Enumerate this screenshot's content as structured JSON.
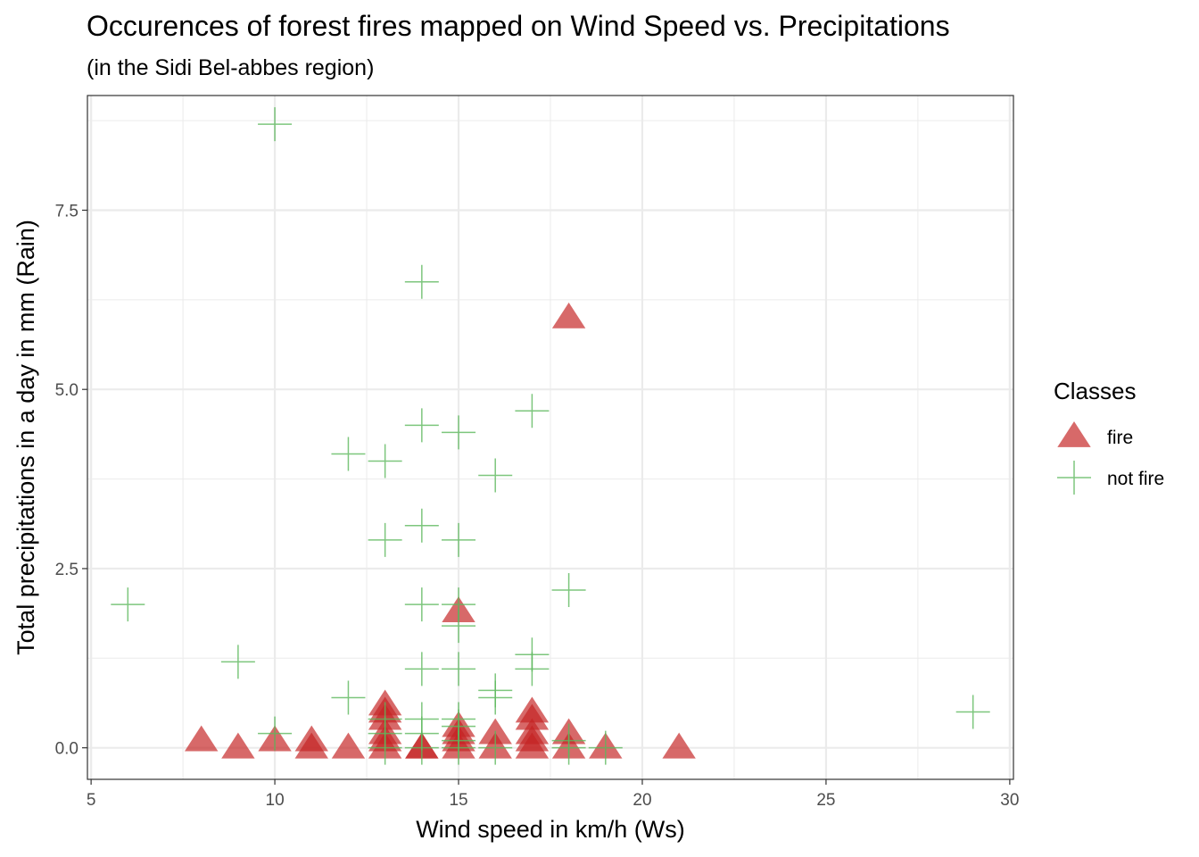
{
  "chart_data": {
    "type": "scatter",
    "title": "Occurences of forest fires mapped on Wind Speed vs. Precipitations",
    "subtitle": "(in the Sidi Bel-abbes region)",
    "xlabel": "Wind speed in km/h (Ws)",
    "ylabel": "Total precipitations in a day in mm (Rain)",
    "xlim": [
      4.9,
      30.1
    ],
    "ylim": [
      -0.44,
      9.1
    ],
    "x_ticks": [
      5,
      10,
      15,
      20,
      25,
      30
    ],
    "x_tick_labels": [
      "5",
      "10",
      "15",
      "20",
      "25",
      "30"
    ],
    "y_ticks": [
      0,
      2.5,
      5,
      7.5
    ],
    "y_tick_labels": [
      "0.0",
      "2.5",
      "5.0",
      "7.5"
    ],
    "grid": true,
    "legend": {
      "title": "Classes",
      "position": "right",
      "entries": [
        {
          "label": "fire",
          "shape": "triangle",
          "color": "#c42222"
        },
        {
          "label": "not fire",
          "shape": "cross",
          "color": "#5cb85c"
        }
      ]
    },
    "series": [
      {
        "name": "fire",
        "color": "#c42222",
        "shape": "triangle",
        "points": [
          [
            8,
            0.1
          ],
          [
            9,
            0
          ],
          [
            10,
            0.1
          ],
          [
            11,
            0.1
          ],
          [
            11,
            0
          ],
          [
            12,
            0
          ],
          [
            13,
            0.6
          ],
          [
            13,
            0.5
          ],
          [
            13,
            0.4
          ],
          [
            13,
            0.2
          ],
          [
            13,
            0.1
          ],
          [
            13,
            0
          ],
          [
            14,
            0
          ],
          [
            14,
            0
          ],
          [
            15,
            1.9
          ],
          [
            15,
            0.3
          ],
          [
            15,
            0.2
          ],
          [
            15,
            0.1
          ],
          [
            15,
            0
          ],
          [
            16,
            0.2
          ],
          [
            16,
            0
          ],
          [
            17,
            0.5
          ],
          [
            17,
            0.4
          ],
          [
            17,
            0.2
          ],
          [
            17,
            0.1
          ],
          [
            17,
            0
          ],
          [
            18,
            6.0
          ],
          [
            18,
            0.2
          ],
          [
            18,
            0
          ],
          [
            19,
            0
          ],
          [
            21,
            0
          ]
        ]
      },
      {
        "name": "not fire",
        "color": "#5cb85c",
        "shape": "cross",
        "points": [
          [
            6,
            2.0
          ],
          [
            9,
            1.2
          ],
          [
            10,
            8.7
          ],
          [
            10,
            0.2
          ],
          [
            12,
            4.1
          ],
          [
            12,
            0.7
          ],
          [
            13,
            4.0
          ],
          [
            13,
            2.9
          ],
          [
            13,
            0.4
          ],
          [
            13,
            0.2
          ],
          [
            13,
            0
          ],
          [
            14,
            6.5
          ],
          [
            14,
            4.5
          ],
          [
            14,
            3.1
          ],
          [
            14,
            2.0
          ],
          [
            14,
            1.1
          ],
          [
            14,
            0.4
          ],
          [
            14,
            0.2
          ],
          [
            14,
            0
          ],
          [
            15,
            4.4
          ],
          [
            15,
            2.9
          ],
          [
            15,
            2.0
          ],
          [
            15,
            1.7
          ],
          [
            15,
            1.1
          ],
          [
            15,
            0.4
          ],
          [
            15,
            0.3
          ],
          [
            15,
            0.1
          ],
          [
            15,
            0
          ],
          [
            16,
            3.8
          ],
          [
            16,
            0.8
          ],
          [
            16,
            0.7
          ],
          [
            16,
            0
          ],
          [
            17,
            4.7
          ],
          [
            17,
            1.3
          ],
          [
            17,
            1.1
          ],
          [
            18,
            2.2
          ],
          [
            18,
            0.1
          ],
          [
            18,
            0
          ],
          [
            19,
            0
          ],
          [
            29,
            0.5
          ]
        ]
      }
    ]
  }
}
